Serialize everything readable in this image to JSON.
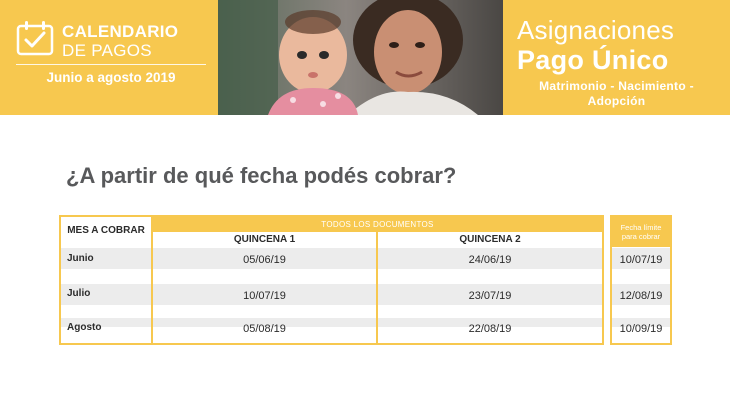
{
  "header": {
    "brand": {
      "line1": "CALENDARIO",
      "line2": "DE PAGOS",
      "period": "Junio a agosto 2019"
    },
    "title": {
      "line1": "Asignaciones",
      "line2": "Pago Único",
      "subtitle_line1": "Matrimonio - Nacimiento -",
      "subtitle_line2": "Adopción"
    },
    "photo_icon": "mother-and-baby-photo",
    "calendar_icon": "calendar-check-icon"
  },
  "question": "¿A partir de qué fecha podés cobrar?",
  "table": {
    "mes_header": "MES A COBRAR",
    "group_header": "TODOS LOS DOCUMENTOS",
    "q1_header": "QUINCENA 1",
    "q2_header": "QUINCENA 2",
    "limit_header_line1": "Fecha límite",
    "limit_header_line2": "para cobrar",
    "rows": [
      {
        "mes": "Junio",
        "q1": "05/06/19",
        "q2": "24/06/19",
        "limite": "10/07/19"
      },
      {
        "mes": "Julio",
        "q1": "10/07/19",
        "q2": "23/07/19",
        "limite": "12/08/19"
      },
      {
        "mes": "Agosto",
        "q1": "05/08/19",
        "q2": "22/08/19",
        "limite": "10/09/19"
      }
    ]
  },
  "colors": {
    "accent": "#f7c84f",
    "text_dark": "#2b2b2b",
    "question_gray": "#58595b",
    "row_band": "#ececec"
  }
}
